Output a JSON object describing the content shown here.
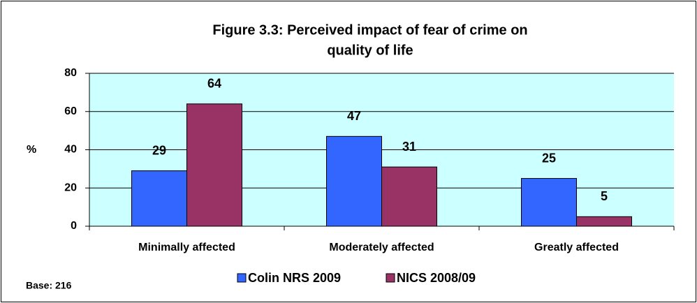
{
  "chart_data": {
    "type": "bar",
    "title": [
      "Figure 3.3: Perceived impact of fear of crime on",
      "quality of life"
    ],
    "ylabel": "%",
    "categories": [
      "Minimally affected",
      "Moderately affected",
      "Greatly affected"
    ],
    "series": [
      {
        "name": "Colin NRS 2009",
        "color": "#3366ff",
        "values": [
          29,
          47,
          25
        ]
      },
      {
        "name": "NICS 2008/09",
        "color": "#993366",
        "values": [
          64,
          31,
          5
        ]
      }
    ],
    "ylim": [
      0,
      80
    ],
    "yticks": [
      0,
      20,
      40,
      60,
      80
    ],
    "grid": true,
    "legend": "bottom",
    "note": "Base:  216"
  }
}
